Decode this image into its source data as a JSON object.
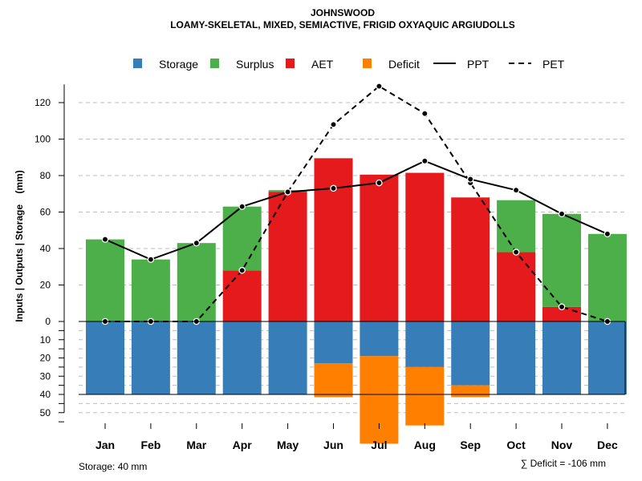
{
  "chart_data": {
    "type": "bar",
    "title": "JOHNSWOOD",
    "subtitle": "LOAMY-SKELETAL, MIXED, SEMIACTIVE, FRIGID OXYAQUIC ARGIUDOLLS",
    "ylabel": "Inputs | Outputs | Storage    (mm)",
    "categories": [
      "Jan",
      "Feb",
      "Mar",
      "Apr",
      "May",
      "Jun",
      "Jul",
      "Aug",
      "Sep",
      "Oct",
      "Nov",
      "Dec"
    ],
    "upper_ylim": [
      0,
      130
    ],
    "upper_ticks": [
      0,
      20,
      40,
      60,
      80,
      100,
      120
    ],
    "lower_ticks": [
      0,
      10,
      20,
      30,
      40,
      50
    ],
    "lower_tick_labels": [
      "0",
      "10",
      "20",
      "30",
      "40",
      "50"
    ],
    "series": [
      {
        "name": "AET",
        "values": [
          0,
          0,
          0,
          28,
          71,
          89.5,
          80.5,
          81.5,
          68,
          38,
          8,
          0
        ]
      },
      {
        "name": "Surplus",
        "values": [
          45,
          34,
          43,
          35,
          1,
          0,
          0,
          0,
          0,
          28.5,
          51,
          48
        ]
      },
      {
        "name": "Storage",
        "values": [
          40,
          40,
          40,
          40,
          40,
          23,
          19,
          25,
          35,
          40,
          40,
          40
        ]
      },
      {
        "name": "Deficit",
        "values": [
          0,
          0,
          0,
          0,
          0,
          18.5,
          48,
          32,
          6.5,
          0,
          0,
          0
        ]
      },
      {
        "name": "PPT",
        "values": [
          45,
          34,
          43,
          63,
          71,
          73,
          76,
          88,
          78,
          72,
          59,
          48
        ]
      },
      {
        "name": "PET",
        "values": [
          0,
          0,
          0,
          28,
          71,
          108,
          129,
          114,
          76,
          38,
          8,
          0
        ]
      }
    ],
    "legend": [
      {
        "name": "Storage",
        "kind": "box",
        "color": "#377eb8"
      },
      {
        "name": "Surplus",
        "kind": "box",
        "color": "#4daf4a"
      },
      {
        "name": "AET",
        "kind": "box",
        "color": "#e41a1c"
      },
      {
        "name": "Deficit",
        "kind": "box",
        "color": "#ff7f00"
      },
      {
        "name": "PPT",
        "kind": "solid"
      },
      {
        "name": "PET",
        "kind": "dashed"
      }
    ],
    "legend_position": "top",
    "colors": {
      "storage": "#377eb8",
      "surplus": "#4daf4a",
      "aet": "#e41a1c",
      "deficit": "#ff7f00",
      "line": "#000000",
      "grid": "#bdbdbd"
    },
    "footer_left": "Storage: 40 mm",
    "footer_right": "∑ Deficit = -106 mm"
  }
}
